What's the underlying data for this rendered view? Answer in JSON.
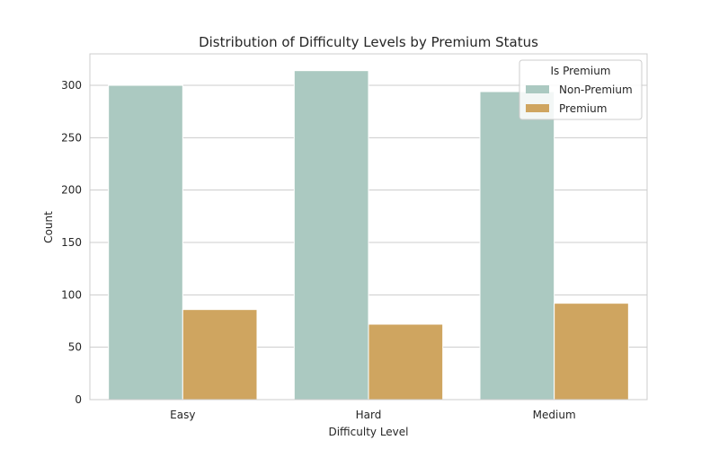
{
  "chart_data": {
    "type": "bar",
    "title": "Distribution of Difficulty Levels by Premium Status",
    "xlabel": "Difficulty Level",
    "ylabel": "Count",
    "categories": [
      "Easy",
      "Hard",
      "Medium"
    ],
    "series": [
      {
        "name": "Non-Premium",
        "color": "#abc9c1",
        "values": [
          300,
          314,
          294
        ]
      },
      {
        "name": "Premium",
        "color": "#cfa560",
        "values": [
          86,
          72,
          92
        ]
      }
    ],
    "ylim": [
      0,
      330
    ],
    "yticks": [
      0,
      50,
      100,
      150,
      200,
      250,
      300
    ],
    "grid": true,
    "legend": {
      "title": "Is Premium",
      "placement": "top-right"
    }
  }
}
